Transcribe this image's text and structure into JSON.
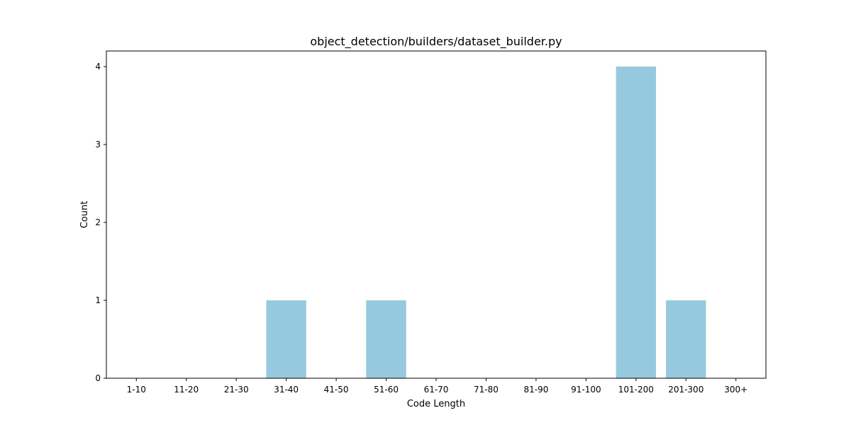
{
  "chart_data": {
    "type": "bar",
    "title": "object_detection/builders/dataset_builder.py",
    "xlabel": "Code Length",
    "ylabel": "Count",
    "categories": [
      "1-10",
      "11-20",
      "21-30",
      "31-40",
      "41-50",
      "51-60",
      "61-70",
      "71-80",
      "81-90",
      "91-100",
      "101-200",
      "201-300",
      "300+"
    ],
    "values": [
      0,
      0,
      0,
      1,
      0,
      1,
      0,
      0,
      0,
      0,
      4,
      1,
      0
    ],
    "ylim": [
      0,
      4.2
    ],
    "yticks": [
      0,
      1,
      2,
      3,
      4
    ],
    "bar_color": "#96c9dd",
    "grid": false,
    "legend": "none"
  }
}
